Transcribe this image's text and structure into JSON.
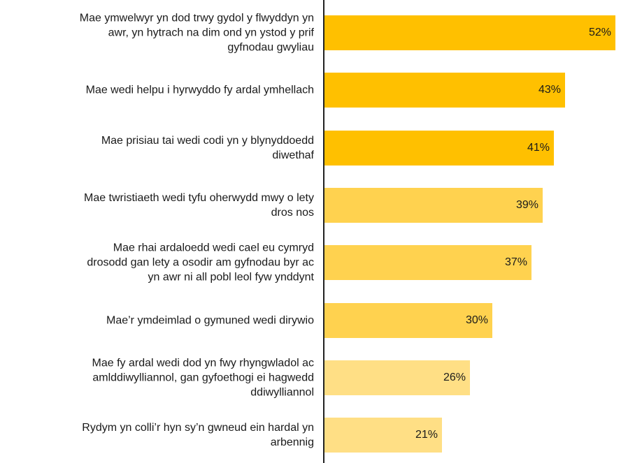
{
  "chart_data": {
    "type": "barh",
    "categories": [
      "Mae ymwelwyr yn dod trwy gydol y flwyddyn yn\nawr, yn hytrach na dim ond yn ystod y prif\ngyfnodau gwyliau",
      "Mae wedi helpu i hyrwyddo fy ardal ymhellach",
      "Mae prisiau tai wedi codi yn y blynyddoedd\ndiwethaf",
      "Mae twristiaeth wedi tyfu oherwydd mwy o lety\ndros nos",
      "Mae rhai ardaloedd wedi cael eu cymryd\ndrosodd gan lety a osodir am gyfnodau byr ac\nyn awr ni all pobl leol fyw ynddynt",
      "Mae’r ymdeimlad o gymuned wedi dirywio",
      "Mae fy ardal wedi dod yn fwy rhyngwladol ac\namlddiwylliannol, gan gyfoethogi ei hagwedd\nddiwylliannol",
      "Rydym yn colli’r hyn sy’n gwneud ein hardal yn\narbennig"
    ],
    "values": [
      52,
      43,
      41,
      39,
      37,
      30,
      26,
      21
    ],
    "value_labels": [
      "52%",
      "43%",
      "41%",
      "39%",
      "37%",
      "30%",
      "26%",
      "21%"
    ],
    "colors": [
      "#ffc000",
      "#ffc000",
      "#ffc000",
      "#ffd24f",
      "#ffd24f",
      "#ffd24f",
      "#ffdf85",
      "#ffdf85"
    ],
    "xlim": [
      0,
      53
    ]
  }
}
